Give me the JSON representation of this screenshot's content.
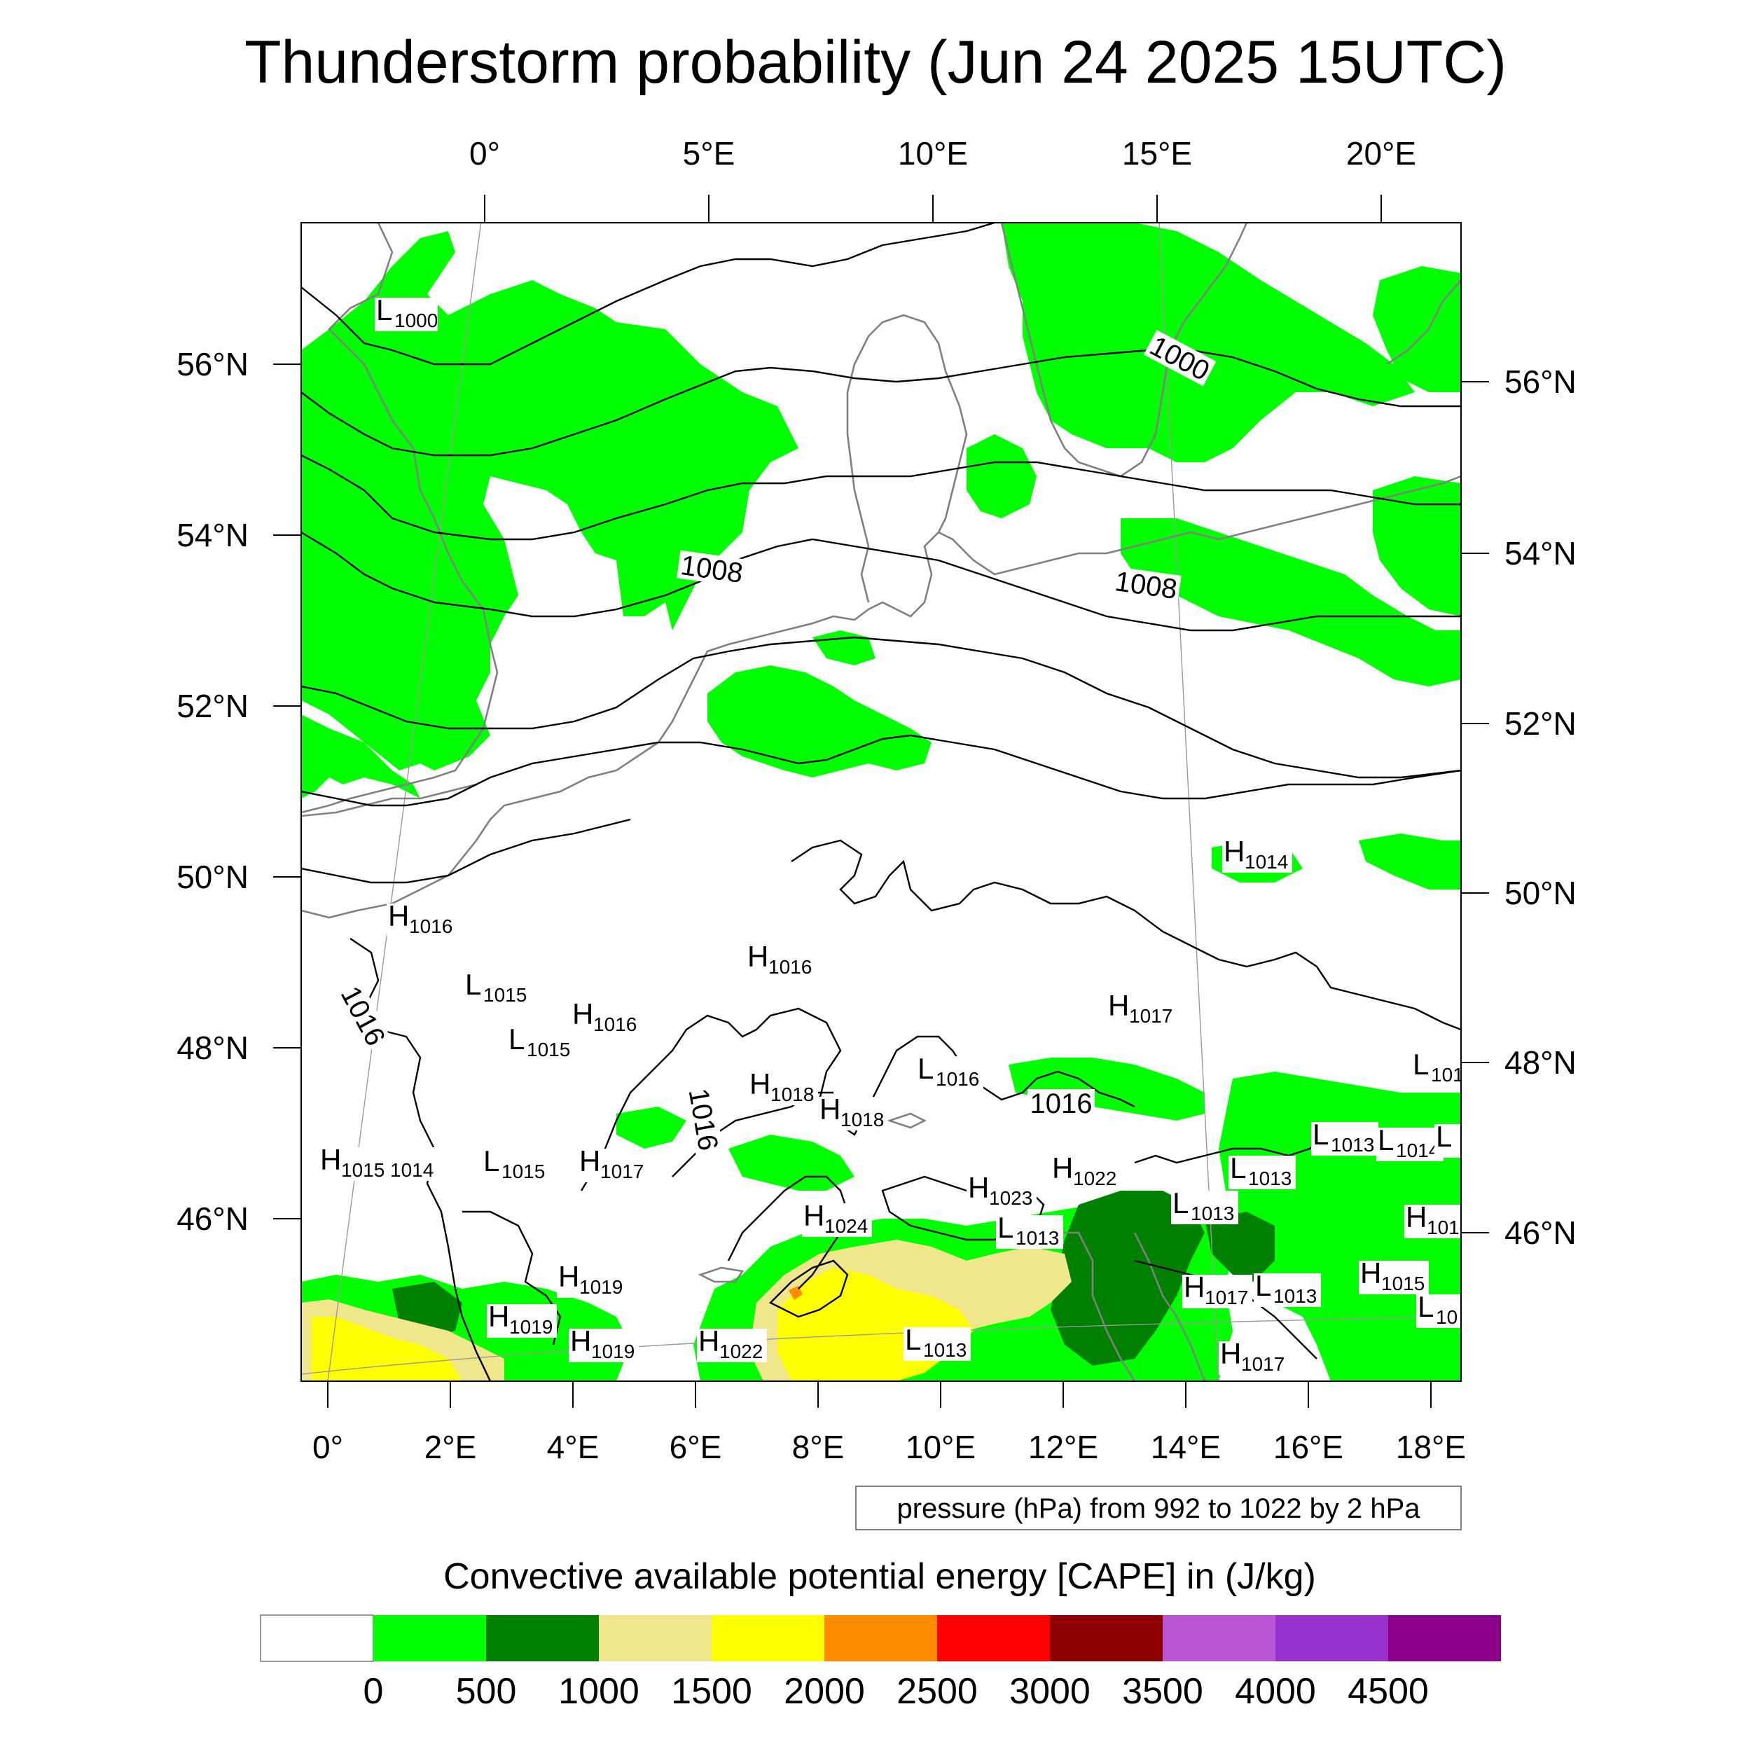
{
  "title": "Thunderstorm probability (Jun 24 2025 15UTC)",
  "map": {
    "top_lon_labels": [
      "0°",
      "5°E",
      "10°E",
      "15°E",
      "20°E"
    ],
    "bottom_lon_labels": [
      "0°",
      "2°E",
      "4°E",
      "6°E",
      "8°E",
      "10°E",
      "12°E",
      "14°E",
      "16°E",
      "18°E"
    ],
    "left_lat_labels": [
      "56°N",
      "54°N",
      "52°N",
      "50°N",
      "48°N",
      "46°N"
    ],
    "right_lat_labels": [
      "56°N",
      "54°N",
      "52°N",
      "50°N",
      "48°N",
      "46°N"
    ],
    "isobar_labels": [
      "1000",
      "1008",
      "1008",
      "1016",
      "1016",
      "1016"
    ],
    "pressure_centers": [
      {
        "type": "L",
        "value": "1000"
      },
      {
        "type": "H",
        "value": "1014"
      },
      {
        "type": "H",
        "value": "1016"
      },
      {
        "type": "H",
        "value": "1016"
      },
      {
        "type": "L",
        "value": "1015"
      },
      {
        "type": "H",
        "value": "1016"
      },
      {
        "type": "L",
        "value": "1015"
      },
      {
        "type": "H",
        "value": "1017"
      },
      {
        "type": "L",
        "value": "101"
      },
      {
        "type": "H",
        "value": "1018"
      },
      {
        "type": "H",
        "value": "1018"
      },
      {
        "type": "L",
        "value": "1016"
      },
      {
        "type": "H",
        "value": "1015"
      },
      {
        "type": "",
        "value": "1014"
      },
      {
        "type": "L",
        "value": "1015"
      },
      {
        "type": "H",
        "value": "1017"
      },
      {
        "type": "H",
        "value": "1023"
      },
      {
        "type": "H",
        "value": "1022"
      },
      {
        "type": "L",
        "value": "1013"
      },
      {
        "type": "L",
        "value": "1013"
      },
      {
        "type": "L",
        "value": "1013"
      },
      {
        "type": "L",
        "value": "1014"
      },
      {
        "type": "L",
        "value": ""
      },
      {
        "type": "H",
        "value": "1024"
      },
      {
        "type": "L",
        "value": "1013"
      },
      {
        "type": "H",
        "value": "101"
      },
      {
        "type": "H",
        "value": "1019"
      },
      {
        "type": "H",
        "value": "1019"
      },
      {
        "type": "H",
        "value": "1019"
      },
      {
        "type": "H",
        "value": "1022"
      },
      {
        "type": "L",
        "value": "1013"
      },
      {
        "type": "H",
        "value": "1017"
      },
      {
        "type": "L",
        "value": "1013"
      },
      {
        "type": "H",
        "value": "1015"
      },
      {
        "type": "L",
        "value": "10"
      },
      {
        "type": "H",
        "value": "1017"
      }
    ],
    "contour_note": "pressure (hPa) from 992 to 1022 by 2 hPa"
  },
  "colorbar": {
    "title": "Convective available potential energy [CAPE] in (J/kg)",
    "labels": [
      "0",
      "500",
      "1000",
      "1500",
      "2000",
      "2500",
      "3000",
      "3500",
      "4000",
      "4500"
    ],
    "colors": [
      "#ffffff",
      "#00ff00",
      "#008000",
      "#f0e68c",
      "#ffff00",
      "#ff8c00",
      "#ff0000",
      "#8b0000",
      "#ba55d3",
      "#9932cc",
      "#8b008b"
    ]
  },
  "colors": {
    "cape_0_500": "#00ff00",
    "cape_500_1000": "#008000",
    "cape_1000_1500": "#f0e68c",
    "cape_1500_2000": "#ffff00",
    "coastline": "#808080",
    "isobar": "#000000"
  }
}
